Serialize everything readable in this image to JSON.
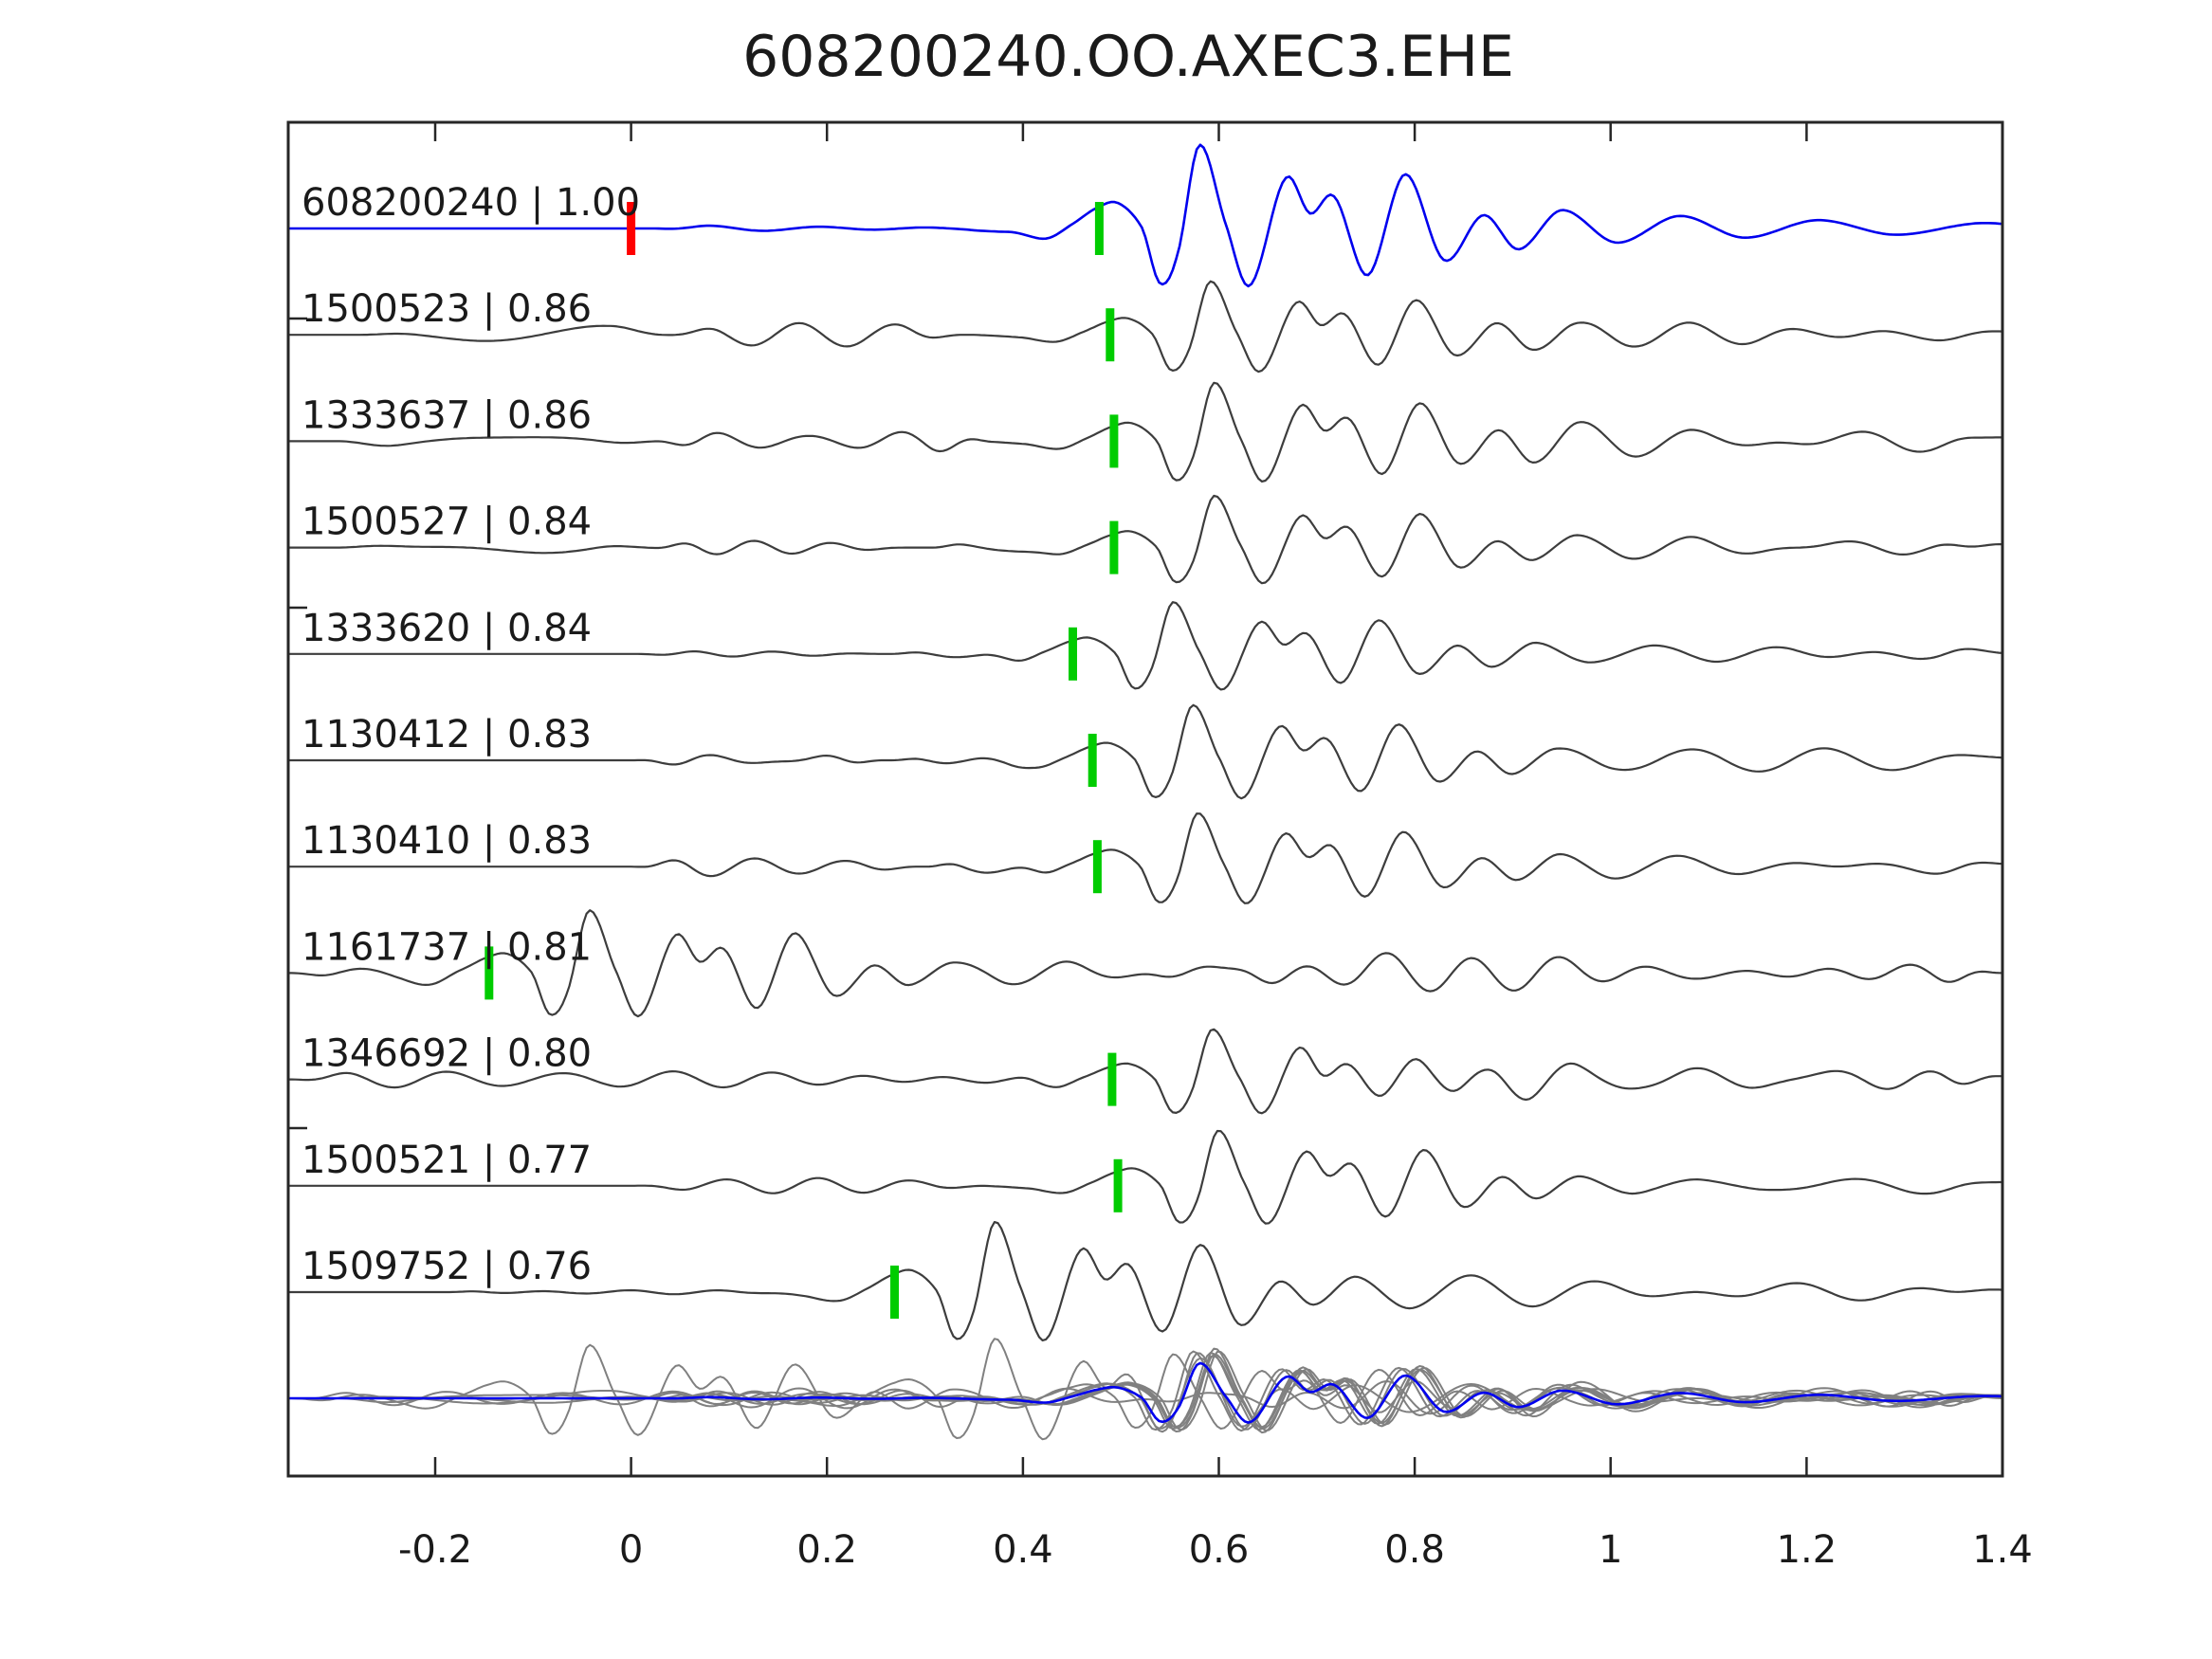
{
  "chart_data": {
    "type": "line",
    "subtype": "seismic-waveform-correlation-stack",
    "title": "608200240.OO.AXEC3.EHE",
    "legend": "none",
    "grid": false,
    "axis": {
      "xlim": [
        -0.35,
        1.4
      ],
      "xticks": [
        -0.2,
        0,
        0.2,
        0.4,
        0.6,
        0.8,
        1,
        1.2,
        1.4
      ],
      "xtick_labels": [
        "-0.2",
        "0",
        "0.2",
        "0.4",
        "0.6",
        "0.8",
        "1",
        "1.2",
        "1.4"
      ]
    },
    "colors": {
      "template_trace": "#0000ee",
      "match_trace": "#3d3d3d",
      "overlay_trace": "#808080",
      "pick_marker": "#00cc00",
      "origin_marker": "#ff0000",
      "axis": "#262626"
    },
    "arrival_shape_keypoints": [
      [
        -0.14,
        0
      ],
      [
        -0.09,
        -0.05
      ],
      [
        -0.055,
        -0.13
      ],
      [
        -0.028,
        0.05
      ],
      [
        0,
        0.26
      ],
      [
        0.02,
        0.3
      ],
      [
        0.044,
        0
      ],
      [
        0.062,
        -0.66
      ],
      [
        0.08,
        -0.3
      ],
      [
        0.102,
        1
      ],
      [
        0.13,
        0.02
      ],
      [
        0.154,
        -0.68
      ],
      [
        0.19,
        0.6
      ],
      [
        0.215,
        0.18
      ],
      [
        0.24,
        0.38
      ],
      [
        0.274,
        -0.56
      ],
      [
        0.312,
        0.65
      ],
      [
        0.352,
        -0.38
      ],
      [
        0.392,
        0.16
      ],
      [
        0.428,
        -0.25
      ],
      [
        0.472,
        0.22
      ],
      [
        0.528,
        -0.17
      ],
      [
        0.592,
        0.15
      ],
      [
        0.658,
        -0.11
      ],
      [
        0.733,
        0.1
      ],
      [
        0.812,
        -0.075
      ],
      [
        0.902,
        0.065
      ],
      [
        1.002,
        -0.05
      ],
      [
        1.102,
        0.04
      ],
      [
        1.222,
        -0.025
      ],
      [
        1.35,
        0
      ]
    ],
    "traces": [
      {
        "id": "608200240",
        "correlation": "1.00",
        "label": "608200240 | 1.00",
        "role": "template",
        "pick_time": 0.478,
        "origin_marker_time": 0,
        "amp_scale": 1.0,
        "seed": 11,
        "noise_packets": [
          [
            0.02,
            0.46,
            3.5,
            7,
            11
          ]
        ]
      },
      {
        "id": "1500523",
        "correlation": "0.86",
        "label": "1500523 | 0.86",
        "role": "match",
        "pick_time": 0.489,
        "amp_scale": 0.64,
        "seed": 21,
        "noise_packets": [
          [
            -0.28,
            0.05,
            9,
            2.5,
            5
          ],
          [
            0.03,
            0.34,
            16,
            9,
            13
          ],
          [
            0.85,
            1.4,
            10,
            7,
            11
          ]
        ]
      },
      {
        "id": "1333637",
        "correlation": "0.86",
        "label": "1333637 | 0.86",
        "role": "match",
        "pick_time": 0.493,
        "amp_scale": 0.7,
        "seed": 32,
        "noise_packets": [
          [
            -0.3,
            0.03,
            8,
            3,
            6
          ],
          [
            0.02,
            0.37,
            17,
            10,
            14
          ],
          [
            0.85,
            1.4,
            11,
            7,
            11
          ]
        ]
      },
      {
        "id": "1500527",
        "correlation": "0.84",
        "label": "1500527 | 0.84",
        "role": "match",
        "pick_time": 0.493,
        "amp_scale": 0.62,
        "seed": 43,
        "noise_packets": [
          [
            -0.3,
            0.02,
            5,
            3,
            6
          ],
          [
            0.01,
            0.3,
            22,
            11,
            15
          ],
          [
            0.3,
            0.44,
            8,
            10,
            14
          ],
          [
            0.85,
            1.4,
            11,
            8,
            12
          ]
        ]
      },
      {
        "id": "1333620",
        "correlation": "0.84",
        "label": "1333620 | 0.84",
        "role": "match",
        "pick_time": 0.451,
        "amp_scale": 0.62,
        "seed": 54,
        "noise_packets": [
          [
            0,
            0.26,
            12,
            10,
            15
          ],
          [
            0.26,
            0.42,
            6,
            9,
            13
          ],
          [
            0.9,
            1.4,
            8,
            7,
            11
          ]
        ]
      },
      {
        "id": "1130412",
        "correlation": "0.83",
        "label": "1130412 | 0.83",
        "role": "match",
        "pick_time": 0.471,
        "amp_scale": 0.66,
        "seed": 65,
        "noise_packets": [
          [
            0,
            0.26,
            10,
            10,
            15
          ],
          [
            0.26,
            0.42,
            5,
            9,
            13
          ],
          [
            0.9,
            1.4,
            7,
            6,
            10
          ]
        ]
      },
      {
        "id": "1130410",
        "correlation": "0.83",
        "label": "1130410 | 0.83",
        "role": "match",
        "pick_time": 0.476,
        "amp_scale": 0.64,
        "seed": 76,
        "noise_packets": [
          [
            0,
            0.3,
            11,
            10,
            15
          ],
          [
            0.3,
            0.44,
            5,
            9,
            13
          ],
          [
            0.9,
            1.4,
            8,
            6,
            10
          ]
        ]
      },
      {
        "id": "1161737",
        "correlation": "0.81",
        "label": "1161737 | 0.81",
        "role": "match",
        "pick_time": -0.145,
        "amp_scale": 0.75,
        "seed": 87,
        "noise_packets": [
          [
            -0.35,
            -0.16,
            7,
            7,
            11
          ],
          [
            0.12,
            0.6,
            15,
            8,
            13
          ],
          [
            0.6,
            1.4,
            17,
            8,
            13
          ]
        ]
      },
      {
        "id": "1346692",
        "correlation": "0.80",
        "label": "1346692 | 0.80",
        "role": "match",
        "pick_time": 0.491,
        "amp_scale": 0.6,
        "seed": 98,
        "noise_packets": [
          [
            -0.35,
            0.46,
            13,
            8,
            13
          ],
          [
            0.6,
            1.4,
            13,
            8,
            13
          ]
        ]
      },
      {
        "id": "1500521",
        "correlation": "0.77",
        "label": "1500521 | 0.77",
        "role": "match",
        "pick_time": 0.497,
        "amp_scale": 0.66,
        "seed": 109,
        "noise_packets": [
          [
            0,
            0.37,
            10,
            9,
            13
          ],
          [
            0.9,
            1.4,
            7,
            6,
            10
          ]
        ]
      },
      {
        "id": "1509752",
        "correlation": "0.76",
        "label": "1509752 | 0.76",
        "role": "match",
        "pick_time": 0.269,
        "amp_scale": 0.84,
        "seed": 120,
        "noise_packets": [
          [
            -0.2,
            0.25,
            7,
            9,
            14
          ],
          [
            0.55,
            1.4,
            9,
            6,
            10
          ]
        ]
      }
    ],
    "overlay_row": {
      "description": "all match waveforms overlaid with template",
      "gray_scale": 0.85,
      "template_scale": 0.42
    }
  }
}
